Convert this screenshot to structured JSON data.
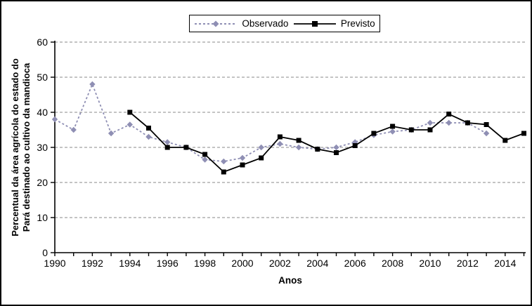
{
  "chart_data": {
    "type": "line",
    "title": "",
    "xlabel": "Anos",
    "ylabel": "Percentual da área agrícola do estado do Pará destinado ao cultivo da mandioca",
    "ylabel_lines": [
      "Percentual da área agrícola do estado do",
      "Pará destinado ao cultivo da mandioca"
    ],
    "xlim": [
      1990,
      2015
    ],
    "ylim": [
      0,
      60
    ],
    "y_ticks": [
      0,
      10,
      20,
      30,
      40,
      50,
      60
    ],
    "x_tick_labels": [
      1990,
      1992,
      1994,
      1996,
      1998,
      2000,
      2002,
      2004,
      2006,
      2008,
      2010,
      2012,
      2014
    ],
    "x_minor_tick_step": 1,
    "grid": "horizontal-dashed",
    "grid_color": "#888888",
    "legend_position": "top-center",
    "series": [
      {
        "name": "Observado",
        "color": "#8f8fb4",
        "style": "dashed",
        "marker": "diamond",
        "x": [
          1990,
          1991,
          1992,
          1993,
          1994,
          1995,
          1996,
          1997,
          1998,
          1999,
          2000,
          2001,
          2002,
          2003,
          2004,
          2005,
          2006,
          2007,
          2008,
          2009,
          2010,
          2011,
          2012,
          2013
        ],
        "y": [
          38,
          35,
          48,
          34,
          36.5,
          33,
          31.5,
          30,
          26.5,
          26,
          27,
          30,
          31,
          30,
          29.5,
          30,
          31.5,
          33.5,
          34.5,
          35,
          37,
          37,
          37,
          34
        ]
      },
      {
        "name": "Previsto",
        "color": "#000000",
        "style": "solid",
        "marker": "square",
        "x": [
          1994,
          1995,
          1996,
          1997,
          1998,
          1999,
          2000,
          2001,
          2002,
          2003,
          2004,
          2005,
          2006,
          2007,
          2008,
          2009,
          2010,
          2011,
          2012,
          2013,
          2014,
          2015
        ],
        "y": [
          40,
          35.5,
          30,
          30,
          28,
          23,
          25,
          27,
          33,
          32,
          29.5,
          28.5,
          30.5,
          34,
          36,
          35,
          35,
          39.5,
          37,
          36.5,
          32,
          34
        ]
      }
    ]
  }
}
